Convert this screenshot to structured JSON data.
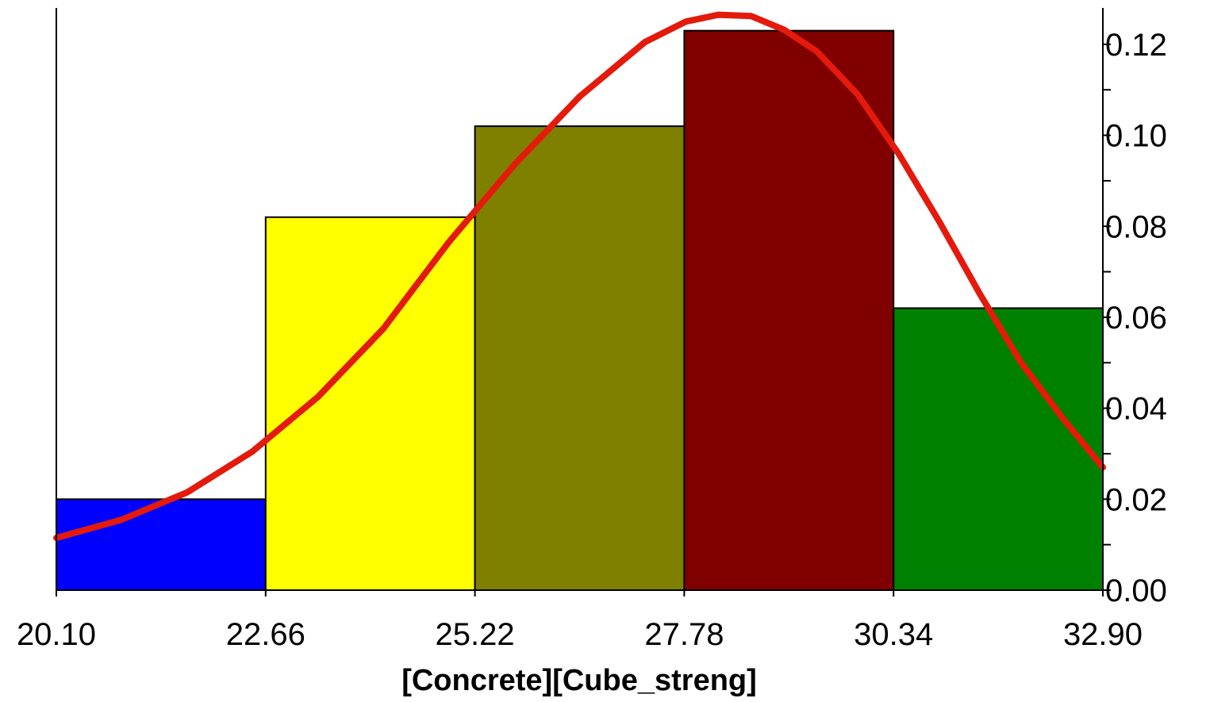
{
  "chart_data": {
    "type": "bar",
    "subtype": "histogram-with-density-curve",
    "xlabel": "[Concrete][Cube_streng]",
    "ylabel": "",
    "x_ticks": [
      "20.10",
      "22.66",
      "25.22",
      "27.78",
      "30.34",
      "32.90"
    ],
    "y_ticks": [
      "0.00",
      "0.02",
      "0.04",
      "0.06",
      "0.08",
      "0.10",
      "0.12"
    ],
    "xlim": [
      20.1,
      32.9
    ],
    "ylim": [
      0,
      0.128
    ],
    "y_axis_side": "right",
    "grid": false,
    "legend": "none",
    "bins": [
      {
        "from": 20.1,
        "to": 22.66,
        "value": 0.02,
        "color": "#0000ff"
      },
      {
        "from": 22.66,
        "to": 25.22,
        "value": 0.082,
        "color": "#ffff00"
      },
      {
        "from": 25.22,
        "to": 27.78,
        "value": 0.102,
        "color": "#808000"
      },
      {
        "from": 27.78,
        "to": 30.34,
        "value": 0.123,
        "color": "#800000"
      },
      {
        "from": 30.34,
        "to": 32.9,
        "value": 0.062,
        "color": "#008000"
      }
    ],
    "curve": {
      "color": "#e31a0c",
      "x": [
        20.1,
        20.9,
        21.7,
        22.5,
        23.3,
        24.1,
        24.9,
        25.7,
        26.5,
        27.3,
        27.8,
        28.2,
        28.6,
        29.0,
        29.4,
        29.9,
        30.4,
        30.9,
        31.4,
        31.9,
        32.4,
        32.9
      ],
      "y": [
        0.0115,
        0.0155,
        0.0215,
        0.0305,
        0.0425,
        0.0575,
        0.0765,
        0.0935,
        0.1085,
        0.1205,
        0.125,
        0.1265,
        0.1262,
        0.1232,
        0.1185,
        0.109,
        0.096,
        0.081,
        0.065,
        0.05,
        0.038,
        0.027
      ]
    }
  }
}
